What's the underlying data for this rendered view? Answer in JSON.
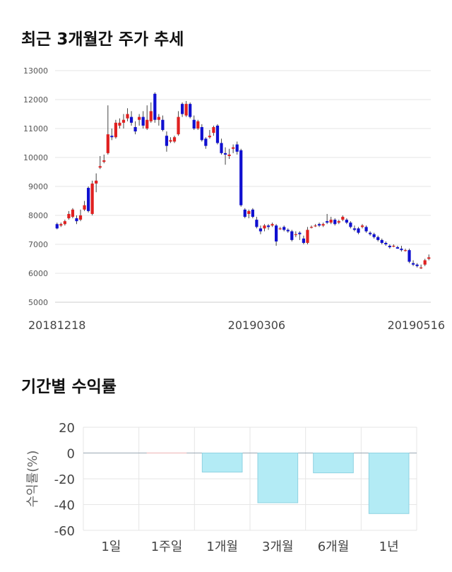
{
  "sections": {
    "price_title": "최근 3개월간 주가 추세",
    "returns_title": "기간별 수익률"
  },
  "colors": {
    "up": "#e02020",
    "down": "#1010d0",
    "wick": "#444444",
    "grid": "#e6e6e6",
    "bar_fill": "#b3ebf5",
    "bar_stroke": "#8fd3e2",
    "zero_positive": "#f2b6b6"
  },
  "chart_data": [
    {
      "type": "candlestick",
      "title": "최근 3개월간 주가 추세",
      "ylim": [
        5000,
        13000
      ],
      "yticks": [
        5000,
        6000,
        7000,
        8000,
        9000,
        10000,
        11000,
        12000,
        13000
      ],
      "xtick_labels": [
        {
          "label": "20181218",
          "index": 0
        },
        {
          "label": "20190306",
          "index": 51
        },
        {
          "label": "20190516",
          "index": 99
        }
      ],
      "grid": true,
      "candles": [
        [
          7700,
          7550,
          7750,
          7520
        ],
        [
          7650,
          7700,
          7750,
          7600
        ],
        [
          7700,
          7800,
          7850,
          7650
        ],
        [
          7900,
          8050,
          8150,
          7850
        ],
        [
          7950,
          8200,
          8250,
          7900
        ],
        [
          7900,
          7800,
          8000,
          7700
        ],
        [
          7850,
          8000,
          8200,
          7800
        ],
        [
          8200,
          8350,
          8500,
          8150
        ],
        [
          8950,
          8150,
          9000,
          8100
        ],
        [
          8050,
          9100,
          9200,
          8000
        ],
        [
          9100,
          9200,
          9450,
          8800
        ],
        [
          9650,
          9700,
          10050,
          9600
        ],
        [
          9850,
          9900,
          10100,
          9800
        ],
        [
          10150,
          10800,
          11800,
          10100
        ],
        [
          10750,
          10700,
          11000,
          10600
        ],
        [
          10700,
          11200,
          11300,
          10650
        ],
        [
          11100,
          11200,
          11350,
          11000
        ],
        [
          11200,
          11300,
          11500,
          11000
        ],
        [
          11350,
          11500,
          11700,
          11250
        ],
        [
          11400,
          11200,
          11600,
          11100
        ],
        [
          11050,
          10900,
          11250,
          10800
        ],
        [
          11300,
          11400,
          11500,
          11100
        ],
        [
          11400,
          11100,
          11600,
          11000
        ],
        [
          11000,
          11300,
          11800,
          10950
        ],
        [
          11250,
          11600,
          11900,
          11200
        ],
        [
          12200,
          11300,
          12250,
          11200
        ],
        [
          11300,
          11400,
          11500,
          11100
        ],
        [
          11300,
          10950,
          11450,
          10900
        ],
        [
          10750,
          10400,
          10900,
          10200
        ],
        [
          10550,
          10600,
          10700,
          10500
        ],
        [
          10550,
          10700,
          10750,
          10500
        ],
        [
          10800,
          11400,
          11600,
          10750
        ],
        [
          11850,
          11500,
          11900,
          11400
        ],
        [
          11450,
          11850,
          11950,
          11400
        ],
        [
          11850,
          11400,
          11900,
          11350
        ],
        [
          11300,
          11000,
          11450,
          10950
        ],
        [
          11000,
          11250,
          11300,
          10950
        ],
        [
          11050,
          10600,
          11150,
          10550
        ],
        [
          10650,
          10400,
          10700,
          10300
        ],
        [
          10700,
          10750,
          10950,
          10650
        ],
        [
          10850,
          11050,
          11100,
          10750
        ],
        [
          11100,
          10500,
          11150,
          10450
        ],
        [
          10500,
          10150,
          10650,
          10100
        ],
        [
          10150,
          10100,
          10350,
          9750
        ],
        [
          10050,
          10100,
          10300,
          9950
        ],
        [
          10300,
          10350,
          10450,
          10150
        ],
        [
          10450,
          10200,
          10550,
          10100
        ],
        [
          10250,
          8350,
          10300,
          8300
        ],
        [
          8200,
          7950,
          8250,
          7900
        ],
        [
          8050,
          8150,
          8200,
          7900
        ],
        [
          8200,
          7950,
          8250,
          7900
        ],
        [
          7850,
          7600,
          7950,
          7550
        ],
        [
          7550,
          7450,
          7650,
          7350
        ],
        [
          7550,
          7650,
          7700,
          7450
        ],
        [
          7650,
          7600,
          7700,
          7500
        ],
        [
          7650,
          7700,
          7750,
          7600
        ],
        [
          7650,
          7100,
          7700,
          6950
        ],
        [
          7550,
          7550,
          7600,
          7500
        ],
        [
          7600,
          7500,
          7650,
          7450
        ],
        [
          7500,
          7450,
          7550,
          7400
        ],
        [
          7450,
          7150,
          7500,
          7100
        ],
        [
          7350,
          7350,
          7450,
          7250
        ],
        [
          7400,
          7350,
          7450,
          7150
        ],
        [
          7200,
          7050,
          7300,
          7000
        ],
        [
          7050,
          7500,
          7600,
          7000
        ],
        [
          7600,
          7600,
          7650,
          7550
        ],
        [
          7650,
          7650,
          7700,
          7600
        ],
        [
          7700,
          7650,
          7750,
          7600
        ],
        [
          7650,
          7700,
          7750,
          7600
        ],
        [
          7800,
          7750,
          8050,
          7700
        ],
        [
          7750,
          7850,
          7950,
          7700
        ],
        [
          7850,
          7700,
          7900,
          7650
        ],
        [
          7750,
          7800,
          7850,
          7700
        ],
        [
          7850,
          7950,
          8000,
          7800
        ],
        [
          7850,
          7750,
          7900,
          7700
        ],
        [
          7750,
          7600,
          7800,
          7550
        ],
        [
          7550,
          7500,
          7650,
          7450
        ],
        [
          7550,
          7400,
          7600,
          7350
        ],
        [
          7600,
          7650,
          7700,
          7550
        ],
        [
          7600,
          7450,
          7650,
          7400
        ],
        [
          7400,
          7350,
          7450,
          7300
        ],
        [
          7350,
          7250,
          7400,
          7200
        ],
        [
          7250,
          7150,
          7300,
          7100
        ],
        [
          7150,
          7050,
          7200,
          7000
        ],
        [
          7050,
          7000,
          7100,
          6950
        ],
        [
          6950,
          6900,
          7000,
          6850
        ],
        [
          6950,
          6950,
          7000,
          6900
        ],
        [
          6900,
          6850,
          6950,
          6850
        ],
        [
          6850,
          6800,
          6950,
          6750
        ],
        [
          6800,
          6800,
          6850,
          6750
        ],
        [
          6800,
          6400,
          6850,
          6350
        ],
        [
          6350,
          6300,
          6450,
          6250
        ],
        [
          6300,
          6250,
          6350,
          6200
        ],
        [
          6200,
          6200,
          6300,
          6150
        ],
        [
          6300,
          6450,
          6500,
          6250
        ],
        [
          6500,
          6550,
          6650,
          6450
        ]
      ]
    },
    {
      "type": "bar",
      "title": "기간별 수익률",
      "ylabel": "수익률(%)",
      "ylim": [
        -60,
        20
      ],
      "yticks": [
        20,
        0,
        -20,
        -40,
        -60
      ],
      "categories": [
        "1일",
        "1주일",
        "1개월",
        "3개월",
        "6개월",
        "1년"
      ],
      "values": [
        0,
        0.3,
        -14.8,
        -38.6,
        -15.4,
        -47.0
      ],
      "grid": true
    }
  ]
}
